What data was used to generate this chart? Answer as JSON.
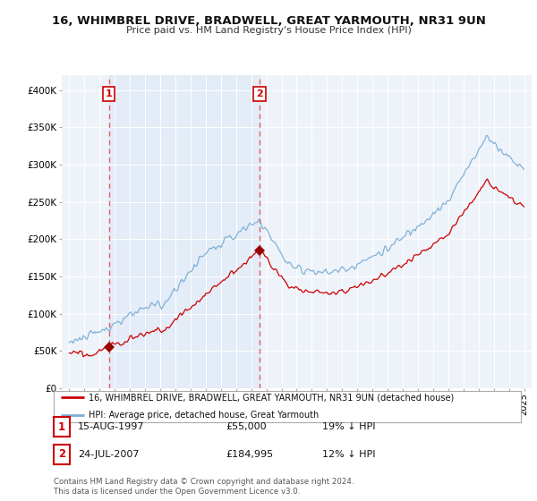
{
  "title": "16, WHIMBREL DRIVE, BRADWELL, GREAT YARMOUTH, NR31 9UN",
  "subtitle": "Price paid vs. HM Land Registry's House Price Index (HPI)",
  "legend_line1": "16, WHIMBREL DRIVE, BRADWELL, GREAT YARMOUTH, NR31 9UN (detached house)",
  "legend_line2": "HPI: Average price, detached house, Great Yarmouth",
  "footer": "Contains HM Land Registry data © Crown copyright and database right 2024.\nThis data is licensed under the Open Government Licence v3.0.",
  "transaction1": {
    "label": "1",
    "date": "15-AUG-1997",
    "price": "£55,000",
    "hpi": "19% ↓ HPI",
    "x": 1997.62
  },
  "transaction2": {
    "label": "2",
    "date": "24-JUL-2007",
    "price": "£184,995",
    "hpi": "12% ↓ HPI",
    "x": 2007.55
  },
  "sale1_price": 55000,
  "sale2_price": 184995,
  "ylim_min": 0,
  "ylim_max": 420000,
  "yticks": [
    0,
    50000,
    100000,
    150000,
    200000,
    250000,
    300000,
    350000,
    400000
  ],
  "ytick_labels": [
    "£0",
    "£50K",
    "£100K",
    "£150K",
    "£200K",
    "£250K",
    "£300K",
    "£350K",
    "£400K"
  ],
  "xlim_min": 1994.5,
  "xlim_max": 2025.5,
  "background_color": "#dce8f5",
  "shaded_region_color": "#dce8f5",
  "outer_bg_color": "#eef3fa",
  "grid_color": "#ffffff",
  "line_color_red": "#cc0000",
  "line_color_blue": "#7aaed6",
  "dashed_color": "#e06060",
  "marker_color": "#990000"
}
